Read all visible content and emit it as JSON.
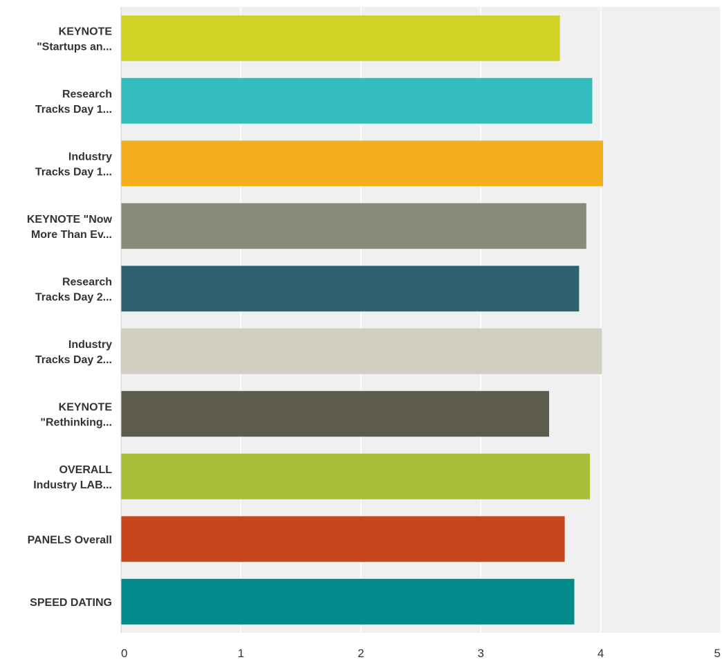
{
  "chart_data": {
    "type": "bar",
    "orientation": "horizontal",
    "title": "",
    "xlabel": "",
    "ylabel": "",
    "xlim": [
      0,
      5
    ],
    "ticks": [
      0,
      1,
      2,
      3,
      4,
      5
    ],
    "grid": true,
    "legend": "none",
    "categories": [
      [
        "KEYNOTE",
        "\"Startups an..."
      ],
      [
        "Research",
        "Tracks Day 1..."
      ],
      [
        "Industry",
        "Tracks Day 1..."
      ],
      [
        "KEYNOTE \"Now",
        "More Than Ev..."
      ],
      [
        "Research",
        "Tracks Day 2..."
      ],
      [
        "Industry",
        "Tracks Day 2..."
      ],
      [
        "KEYNOTE",
        "\"Rethinking..."
      ],
      [
        "OVERALL",
        "Industry LAB..."
      ],
      [
        "PANELS Overall"
      ],
      [
        "SPEED DATING"
      ]
    ],
    "values": [
      3.66,
      3.93,
      4.02,
      3.88,
      3.82,
      4.01,
      3.57,
      3.91,
      3.7,
      3.78
    ],
    "colors": [
      "#D0D426",
      "#33BDBF",
      "#F5AF1E",
      "#8A8A7B",
      "#2E606E",
      "#D0CEC1",
      "#5C5B4D",
      "#A8BE38",
      "#C8461C",
      "#008A8A"
    ]
  }
}
